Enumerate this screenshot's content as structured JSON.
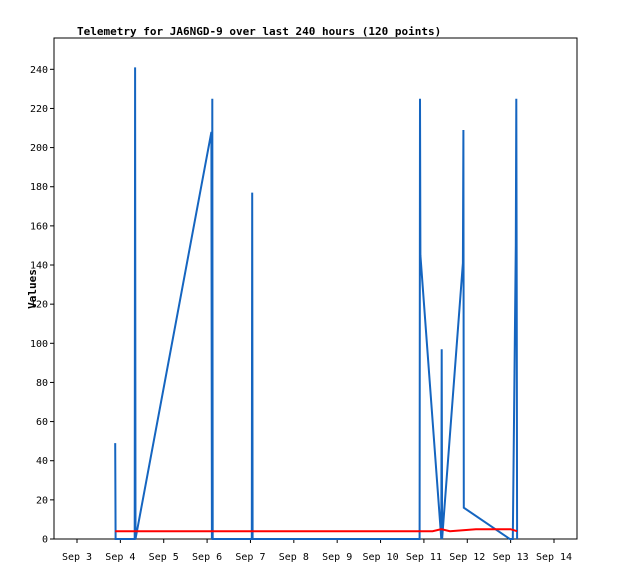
{
  "chart_data": {
    "type": "line",
    "title": "Telemetry for JA6NGD-9 over last 240 hours (120 points)",
    "xlabel": "",
    "ylabel": "Values",
    "x_ticks": [
      "Sep 3",
      "Sep 4",
      "Sep 5",
      "Sep 6",
      "Sep 7",
      "Sep 8",
      "Sep 9",
      "Sep 10",
      "Sep 11",
      "Sep 12",
      "Sep 13",
      "Sep 14"
    ],
    "xlim": [
      0,
      11
    ],
    "ylim": [
      0,
      256
    ],
    "y_ticks": [
      0,
      20,
      40,
      60,
      80,
      100,
      120,
      140,
      160,
      180,
      200,
      220,
      240
    ],
    "grid": false,
    "colors": {
      "blue": "#1565c0",
      "red": "#ff0000"
    },
    "series": [
      {
        "color": "#1565c0",
        "points": [
          [
            0.88,
            49
          ],
          [
            0.89,
            0
          ],
          [
            1.33,
            0
          ],
          [
            1.34,
            241
          ],
          [
            1.35,
            0
          ],
          [
            3.1,
            208
          ],
          [
            3.11,
            0
          ],
          [
            3.12,
            225
          ],
          [
            3.13,
            0
          ],
          [
            4.03,
            0
          ],
          [
            4.04,
            177
          ],
          [
            4.05,
            0
          ],
          [
            7.9,
            0
          ],
          [
            7.91,
            225
          ],
          [
            7.92,
            145
          ],
          [
            8.4,
            0
          ],
          [
            8.41,
            97
          ],
          [
            8.42,
            0
          ],
          [
            8.9,
            141
          ],
          [
            8.91,
            209
          ],
          [
            8.92,
            16
          ],
          [
            9.98,
            0
          ],
          [
            10.05,
            0
          ],
          [
            10.12,
            150
          ],
          [
            10.13,
            225
          ],
          [
            10.14,
            130
          ],
          [
            10.15,
            0
          ]
        ]
      },
      {
        "color": "#ff0000",
        "points": [
          [
            0.88,
            4
          ],
          [
            7.9,
            4
          ],
          [
            8.2,
            4
          ],
          [
            8.4,
            5
          ],
          [
            8.6,
            4
          ],
          [
            9.2,
            5
          ],
          [
            10.0,
            5
          ],
          [
            10.15,
            4
          ]
        ]
      }
    ]
  }
}
